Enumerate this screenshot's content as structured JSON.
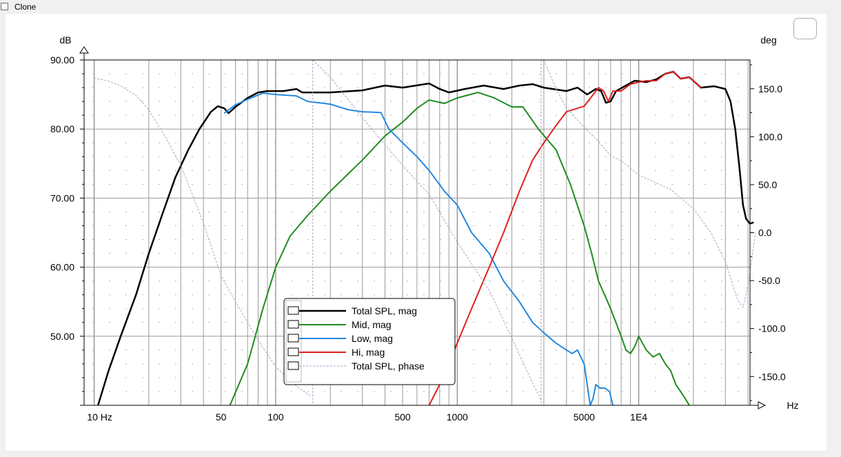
{
  "window": {
    "clone_label": "Clone",
    "clone_checked": false
  },
  "chart_data": {
    "type": "line",
    "x_scale": "log",
    "xlim": [
      8.8,
      41000
    ],
    "ylim": [
      40,
      90
    ],
    "y2lim": [
      -180,
      180
    ],
    "ylabel": "dB",
    "y2label": "deg",
    "xlabel": "Hz",
    "grid": true,
    "legend_position": "bottom-center",
    "x_ticks": [
      {
        "v": 10,
        "label": "10 Hz"
      },
      {
        "v": 50,
        "label": "50"
      },
      {
        "v": 100,
        "label": "100"
      },
      {
        "v": 500,
        "label": "500"
      },
      {
        "v": 1000,
        "label": "1000"
      },
      {
        "v": 5000,
        "label": "5000"
      },
      {
        "v": 10000,
        "label": "1E4"
      }
    ],
    "y_ticks": [
      {
        "v": 90,
        "label": "90.00"
      },
      {
        "v": 80,
        "label": "80.00"
      },
      {
        "v": 70,
        "label": "70.00"
      },
      {
        "v": 60,
        "label": "60.00"
      },
      {
        "v": 50,
        "label": "50.00"
      }
    ],
    "y2_ticks": [
      {
        "v": 150,
        "label": "150.0"
      },
      {
        "v": 100,
        "label": "100.0"
      },
      {
        "v": 50,
        "label": "50.0"
      },
      {
        "v": 0,
        "label": "0.0"
      },
      {
        "v": -50,
        "label": "-50.0"
      },
      {
        "v": -100,
        "label": "-100.0"
      },
      {
        "v": -150,
        "label": "-150.0"
      }
    ],
    "series": [
      {
        "name": "Total SPL, mag",
        "color": "#000000",
        "width": 2.5,
        "dash": "",
        "axis": "left",
        "points": [
          [
            10.5,
            40
          ],
          [
            12,
            45
          ],
          [
            14,
            50
          ],
          [
            17,
            56
          ],
          [
            20,
            62
          ],
          [
            24,
            68
          ],
          [
            28,
            73
          ],
          [
            33,
            77
          ],
          [
            38,
            80
          ],
          [
            44,
            82.5
          ],
          [
            48,
            83.3
          ],
          [
            52,
            83
          ],
          [
            55,
            82.3
          ],
          [
            60,
            83.2
          ],
          [
            70,
            84.5
          ],
          [
            80,
            85.3
          ],
          [
            90,
            85.5
          ],
          [
            110,
            85.5
          ],
          [
            130,
            85.8
          ],
          [
            140,
            85.3
          ],
          [
            200,
            85.3
          ],
          [
            300,
            85.6
          ],
          [
            400,
            86.3
          ],
          [
            500,
            86
          ],
          [
            700,
            86.6
          ],
          [
            800,
            85.8
          ],
          [
            900,
            85.3
          ],
          [
            1100,
            85.8
          ],
          [
            1400,
            86.3
          ],
          [
            1800,
            85.8
          ],
          [
            2200,
            86.3
          ],
          [
            2600,
            86.5
          ],
          [
            3000,
            86
          ],
          [
            4000,
            85.5
          ],
          [
            4600,
            86
          ],
          [
            5200,
            85
          ],
          [
            5800,
            85.8
          ],
          [
            6200,
            85.5
          ],
          [
            6600,
            83.8
          ],
          [
            7000,
            84
          ],
          [
            7500,
            85.5
          ],
          [
            8500,
            86.3
          ],
          [
            9500,
            87
          ],
          [
            11000,
            86.8
          ],
          [
            12500,
            87.2
          ],
          [
            14000,
            88
          ],
          [
            15500,
            88.3
          ],
          [
            17000,
            87.3
          ],
          [
            19000,
            87.5
          ],
          [
            22000,
            86
          ],
          [
            26000,
            86.2
          ],
          [
            30000,
            85.8
          ],
          [
            32000,
            84
          ],
          [
            34000,
            80
          ],
          [
            36000,
            74
          ],
          [
            37500,
            69
          ],
          [
            39000,
            67
          ],
          [
            41000,
            66.3
          ],
          [
            43000,
            66.5
          ]
        ]
      },
      {
        "name": "Mid, mag",
        "color": "#1f8c1f",
        "width": 2,
        "dash": "",
        "axis": "left",
        "points": [
          [
            56,
            40
          ],
          [
            70,
            46
          ],
          [
            85,
            54
          ],
          [
            100,
            60
          ],
          [
            120,
            64.5
          ],
          [
            150,
            67.5
          ],
          [
            200,
            71
          ],
          [
            300,
            75.5
          ],
          [
            400,
            79
          ],
          [
            500,
            81
          ],
          [
            600,
            83
          ],
          [
            700,
            84.2
          ],
          [
            850,
            83.7
          ],
          [
            1000,
            84.5
          ],
          [
            1300,
            85.3
          ],
          [
            1600,
            84.5
          ],
          [
            2000,
            83.2
          ],
          [
            2300,
            83.2
          ],
          [
            2800,
            80
          ],
          [
            3500,
            77
          ],
          [
            4200,
            72
          ],
          [
            5000,
            66
          ],
          [
            5500,
            62
          ],
          [
            6000,
            58
          ],
          [
            7000,
            54
          ],
          [
            8000,
            50
          ],
          [
            8500,
            48
          ],
          [
            9000,
            47.5
          ],
          [
            9500,
            48.5
          ],
          [
            10000,
            50
          ],
          [
            11000,
            48
          ],
          [
            12000,
            47
          ],
          [
            13000,
            47.5
          ],
          [
            14000,
            46
          ],
          [
            15000,
            45
          ],
          [
            16000,
            43
          ],
          [
            17000,
            42
          ],
          [
            18000,
            41
          ],
          [
            19000,
            40
          ]
        ]
      },
      {
        "name": "Low, mag",
        "color": "#2288e0",
        "width": 2,
        "dash": "",
        "axis": "left",
        "points": [
          [
            52,
            82.3
          ],
          [
            60,
            83.5
          ],
          [
            70,
            84.3
          ],
          [
            85,
            85.2
          ],
          [
            100,
            85
          ],
          [
            130,
            84.8
          ],
          [
            150,
            84
          ],
          [
            200,
            83.6
          ],
          [
            250,
            82.8
          ],
          [
            300,
            82.5
          ],
          [
            380,
            82.4
          ],
          [
            420,
            80
          ],
          [
            500,
            78
          ],
          [
            600,
            76
          ],
          [
            700,
            74
          ],
          [
            850,
            71
          ],
          [
            1000,
            69
          ],
          [
            1200,
            65
          ],
          [
            1500,
            62
          ],
          [
            1800,
            58
          ],
          [
            2200,
            55
          ],
          [
            2600,
            52
          ],
          [
            3000,
            50.5
          ],
          [
            3500,
            49
          ],
          [
            4000,
            48
          ],
          [
            4300,
            47.5
          ],
          [
            4600,
            48
          ],
          [
            5000,
            46
          ],
          [
            5200,
            43
          ],
          [
            5400,
            40
          ],
          [
            5600,
            41
          ],
          [
            5800,
            43
          ],
          [
            6100,
            42.5
          ],
          [
            6500,
            42.5
          ],
          [
            6900,
            42
          ],
          [
            7200,
            40
          ]
        ]
      },
      {
        "name": "Hi, mag",
        "color": "#e02020",
        "width": 2,
        "dash": "",
        "axis": "left",
        "points": [
          [
            700,
            40
          ],
          [
            800,
            43
          ],
          [
            900,
            46
          ],
          [
            1000,
            49
          ],
          [
            1200,
            54
          ],
          [
            1500,
            60
          ],
          [
            1800,
            65
          ],
          [
            2200,
            71
          ],
          [
            2600,
            75.5
          ],
          [
            3000,
            78
          ],
          [
            3500,
            80.5
          ],
          [
            4000,
            82.5
          ],
          [
            5000,
            83.3
          ],
          [
            5500,
            84.7
          ],
          [
            6000,
            86
          ],
          [
            6400,
            85.5
          ],
          [
            6800,
            84
          ],
          [
            7200,
            85.5
          ],
          [
            8000,
            85.5
          ],
          [
            9000,
            86.5
          ],
          [
            10000,
            86.8
          ],
          [
            11000,
            87
          ],
          [
            12500,
            87
          ],
          [
            14000,
            88
          ],
          [
            15500,
            88.3
          ],
          [
            17000,
            87.3
          ],
          [
            19000,
            87.5
          ],
          [
            22000,
            86
          ]
        ]
      },
      {
        "name": "Total SPL, phase",
        "color": "#b49ec8",
        "width": 1,
        "dash": "3 2",
        "axis": "right",
        "points": [
          [
            10,
            161
          ],
          [
            12,
            158
          ],
          [
            14,
            153
          ],
          [
            17,
            143
          ],
          [
            20,
            128
          ],
          [
            25,
            98
          ],
          [
            30,
            70
          ],
          [
            40,
            10
          ],
          [
            50,
            -45
          ],
          [
            60,
            -72
          ],
          [
            80,
            -112
          ],
          [
            100,
            -140
          ],
          [
            130,
            -160
          ],
          [
            155,
            -170
          ],
          [
            160,
            180
          ],
          [
            200,
            162
          ],
          [
            300,
            120
          ],
          [
            500,
            70
          ],
          [
            700,
            40
          ],
          [
            1000,
            -10
          ],
          [
            1500,
            -60
          ],
          [
            2000,
            -110
          ],
          [
            2500,
            -150
          ],
          [
            2900,
            -175
          ],
          [
            3000,
            180
          ],
          [
            3500,
            150
          ],
          [
            4000,
            130
          ],
          [
            5000,
            110
          ],
          [
            6000,
            95
          ],
          [
            7000,
            80
          ],
          [
            8000,
            75
          ],
          [
            10000,
            60
          ],
          [
            15000,
            45
          ],
          [
            20000,
            25
          ],
          [
            25000,
            0
          ],
          [
            30000,
            -30
          ],
          [
            35000,
            -70
          ],
          [
            37500,
            -78
          ],
          [
            40000,
            -55
          ],
          [
            44000,
            0
          ]
        ]
      }
    ]
  }
}
